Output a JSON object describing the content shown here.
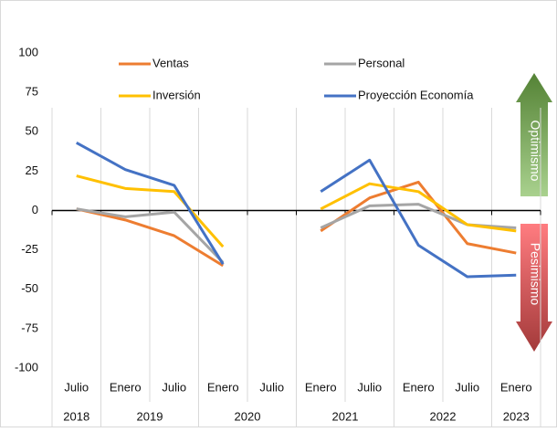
{
  "chart_data": {
    "type": "line",
    "categories": [
      "Julio",
      "Enero",
      "Julio",
      "Enero",
      "Julio",
      "Enero",
      "Julio",
      "Enero",
      "Julio",
      "Enero"
    ],
    "groups": [
      {
        "label": "2018",
        "count": 1
      },
      {
        "label": "2019",
        "count": 2
      },
      {
        "label": "2020",
        "count": 2
      },
      {
        "label": "2021",
        "count": 2
      },
      {
        "label": "2022",
        "count": 2
      },
      {
        "label": "2023",
        "count": 1
      }
    ],
    "series": [
      {
        "name": "Ventas",
        "color": "#ed7d31",
        "values": [
          1,
          -6,
          -16,
          -35,
          null,
          -13,
          8,
          18,
          -21,
          -27
        ]
      },
      {
        "name": "Personal",
        "color": "#a5a5a5",
        "values": [
          1,
          -4,
          -1,
          -33,
          null,
          -11,
          3,
          4,
          -9,
          -11
        ]
      },
      {
        "name": "Inversión",
        "color": "#ffc000",
        "values": [
          22,
          14,
          12,
          -23,
          null,
          1,
          17,
          12,
          -9,
          -13
        ]
      },
      {
        "name": "Proyección Economía",
        "color": "#4472c4",
        "values": [
          43,
          26,
          16,
          -34,
          null,
          12,
          32,
          -22,
          -42,
          -41
        ]
      }
    ],
    "ylim": [
      -100,
      100
    ],
    "yticks": [
      -100,
      -75,
      -50,
      -25,
      0,
      25,
      50,
      75,
      100
    ],
    "grid": false,
    "annotations": [
      "Optimismo",
      "Pesimismo"
    ]
  }
}
